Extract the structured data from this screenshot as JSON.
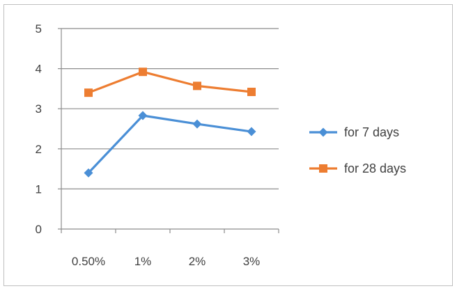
{
  "chart_data": {
    "type": "line",
    "categories": [
      "0.50%",
      "1%",
      "2%",
      "3%"
    ],
    "series": [
      {
        "name": "for 7 days",
        "values": [
          1.4,
          2.83,
          2.62,
          2.43
        ],
        "color": "#4a8fd6",
        "marker": "diamond"
      },
      {
        "name": "for 28 days",
        "values": [
          3.4,
          3.92,
          3.57,
          3.42
        ],
        "color": "#ed7d31",
        "marker": "square"
      }
    ],
    "yticks": [
      "0",
      "1",
      "2",
      "3",
      "4",
      "5"
    ],
    "ylim": [
      0,
      5
    ],
    "grid": true,
    "legend_position": "right"
  }
}
